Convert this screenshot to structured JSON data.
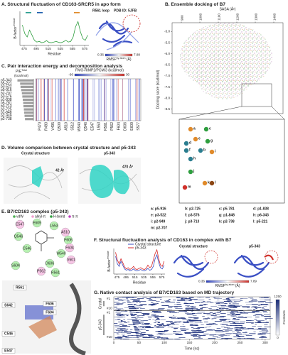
{
  "panel_a": {
    "title": "A. Structural fluctuation of CD163-SRCR5 in apo form",
    "loop_label": "R561 loop",
    "pdb": "PDB ID: 5JFB",
    "chart": {
      "type": "line",
      "y_label": "B-factor",
      "y_label_sup": "residue",
      "x_label": "Residue",
      "x": [
        472,
        476,
        480,
        484,
        488,
        492,
        496,
        500,
        504,
        508,
        512,
        516,
        520,
        524,
        528,
        532,
        536,
        540,
        544,
        548,
        552,
        556,
        560,
        564,
        568,
        572,
        576,
        580
      ],
      "values": [
        60,
        35,
        25,
        45,
        30,
        15,
        10,
        12,
        8,
        10,
        14,
        9,
        8,
        10,
        12,
        9,
        8,
        11,
        15,
        10,
        12,
        25,
        55,
        70,
        40,
        20,
        15,
        30
      ],
      "color": "#2e9e3e",
      "xlim": [
        468,
        582
      ],
      "ylim": [
        0,
        100
      ],
      "xticks": [
        475,
        495,
        515,
        535,
        555,
        575
      ]
    },
    "colorbar": {
      "min": 0.36,
      "max": 7.88,
      "label": "RMSF",
      "label_sup": "by atom",
      "unit": " (Å)"
    }
  },
  "panel_b": {
    "title": "B. Ensemble docking of B7",
    "chart": {
      "type": "scatter",
      "x_label": "SASA (Å²)",
      "y_label": "Docking score (kcal/mol)",
      "xlim": [
        850,
        1450
      ],
      "xticks": [
        900,
        1000,
        1100,
        1200,
        1300,
        1400
      ],
      "ylim": [
        -8.7,
        -4.6
      ],
      "yticks": [
        {
          "value": -5,
          "label": "-5.0"
        },
        {
          "value": -5.5,
          "label": "-5.5"
        },
        {
          "value": -6,
          "label": "-6.0"
        },
        {
          "value": -6.5,
          "label": "-6.5"
        },
        {
          "value": -7,
          "label": "-7.0"
        },
        {
          "value": -7.5,
          "label": "-7.5"
        },
        {
          "value": -8,
          "label": "-8.0"
        },
        {
          "value": -8.5,
          "label": "-8.5"
        }
      ]
    },
    "zoom_labels": [
      "a",
      "c",
      "e",
      "d",
      "g",
      "f",
      "b",
      "i",
      "h",
      "j",
      "k",
      "l",
      "m"
    ],
    "legend": [
      "a: p5-916",
      "b: p2-725",
      "c: p5-781",
      "d: p1-838",
      "e: p3-522",
      "f: p3-576",
      "g: p1-848",
      "h: p6-343",
      "i: p2-949",
      "j: p3-713",
      "k: p2-738",
      "l: p5-221",
      "m: p2-707"
    ]
  },
  "panel_c": {
    "title": "C. Pair interaction energy and decomposition analysis",
    "bar_chart": {
      "type": "bar",
      "x_label": "PIE",
      "x_label_sup": "Total",
      "x_unit": "(kcal/mol)",
      "categories": [
        "p5-343",
        "p5-221",
        "p3-522",
        "p5-916",
        "p2-707",
        "p3-576",
        "p1-838",
        "p5-781",
        "p3-713",
        "p2-725",
        "p1-848",
        "p2-949",
        "p2-738"
      ],
      "values": [
        -72,
        -60,
        -58,
        -55,
        -52,
        -50,
        -48,
        -46,
        -45,
        -43,
        -42,
        -40,
        -38
      ],
      "xlim": [
        -80,
        0
      ],
      "color": "#9e9e9e"
    },
    "heatmap": {
      "type": "heatmap",
      "colorbar_label": "FMO-RIMP2/PCM/3 (kcal/mol)",
      "colorbar_ticks": [
        -60,
        30
      ],
      "columns": [
        "P470",
        "R493",
        "V495",
        "Q509",
        "A510",
        "S512",
        "W540",
        "Q546",
        "E547",
        "L553",
        "R561",
        "P562",
        "F604",
        "D606",
        "E609",
        "S577"
      ]
    }
  },
  "panel_d": {
    "title": "D. Volume comparison between crystal structure and p5-343",
    "left_label": "Crystal structure",
    "left_volume": "42 Å³",
    "right_label": "p5-343",
    "right_volume": "470 Å³"
  },
  "panel_e": {
    "title": "E. B7/CD163 complex (p5-343)",
    "legend": [
      "vdW",
      "alkyl-π",
      "H-bond",
      "π-π"
    ],
    "residues_2d": [
      "E547",
      "E609",
      "L553",
      "A510",
      "Q546",
      "F606",
      "F604",
      "C546",
      "W540",
      "V601",
      "S604",
      "D606",
      "P562",
      "R561"
    ],
    "residues_3d": [
      "R561",
      "F606",
      "F604",
      "S642",
      "C546",
      "E547"
    ]
  },
  "panel_f": {
    "title": "F. Structural fluctuation analysis of CD163 in complex with B7",
    "chart": {
      "type": "line",
      "y_label": "B-factor",
      "y_label_sup": "residue",
      "x_label": "Residue",
      "x": [
        472,
        476,
        480,
        484,
        488,
        492,
        496,
        500,
        504,
        508,
        512,
        516,
        520,
        524,
        528,
        532,
        536,
        540,
        544,
        548,
        552,
        556,
        560,
        564,
        568,
        572,
        576,
        580
      ],
      "series": [
        {
          "name": "Crystal structure",
          "color": "#3b4cc0",
          "values": [
            70,
            40,
            30,
            50,
            35,
            20,
            15,
            18,
            12,
            15,
            20,
            14,
            12,
            15,
            18,
            14,
            12,
            16,
            22,
            15,
            18,
            30,
            60,
            75,
            45,
            25,
            20,
            35
          ]
        },
        {
          "name": "p5-343",
          "color": "#d62728",
          "values": [
            85,
            55,
            40,
            60,
            45,
            28,
            20,
            25,
            18,
            22,
            30,
            20,
            18,
            22,
            25,
            20,
            18,
            22,
            35,
            25,
            30,
            55,
            80,
            95,
            60,
            35,
            30,
            50
          ]
        }
      ],
      "xlim": [
        468,
        582
      ],
      "ylim": [
        0,
        100
      ],
      "xticks": [
        475,
        495,
        515,
        535,
        555,
        575
      ]
    },
    "structure_labels": [
      "Crystal structure",
      "p5-343"
    ],
    "colorbar": {
      "min": 0.36,
      "max": 7.89,
      "label": "RMSF",
      "label_sup": "by atom",
      "unit": " (Å)"
    }
  },
  "panel_g": {
    "title": "G. Native contact analysis of B7/CD163 based on MD trajectory",
    "chart": {
      "type": "heatmap",
      "x_label": "Time (ns)",
      "xlim": [
        0,
        310
      ],
      "xticks": [
        0,
        50,
        100,
        150,
        200,
        250,
        300
      ],
      "groups": [
        "Crystal",
        "p5-343"
      ],
      "row_labels": [
        "#1",
        "#10",
        "#1",
        "#10"
      ],
      "colorbar_ticks": [
        1250,
        0
      ],
      "colorbar_label": "#contacts"
    }
  }
}
